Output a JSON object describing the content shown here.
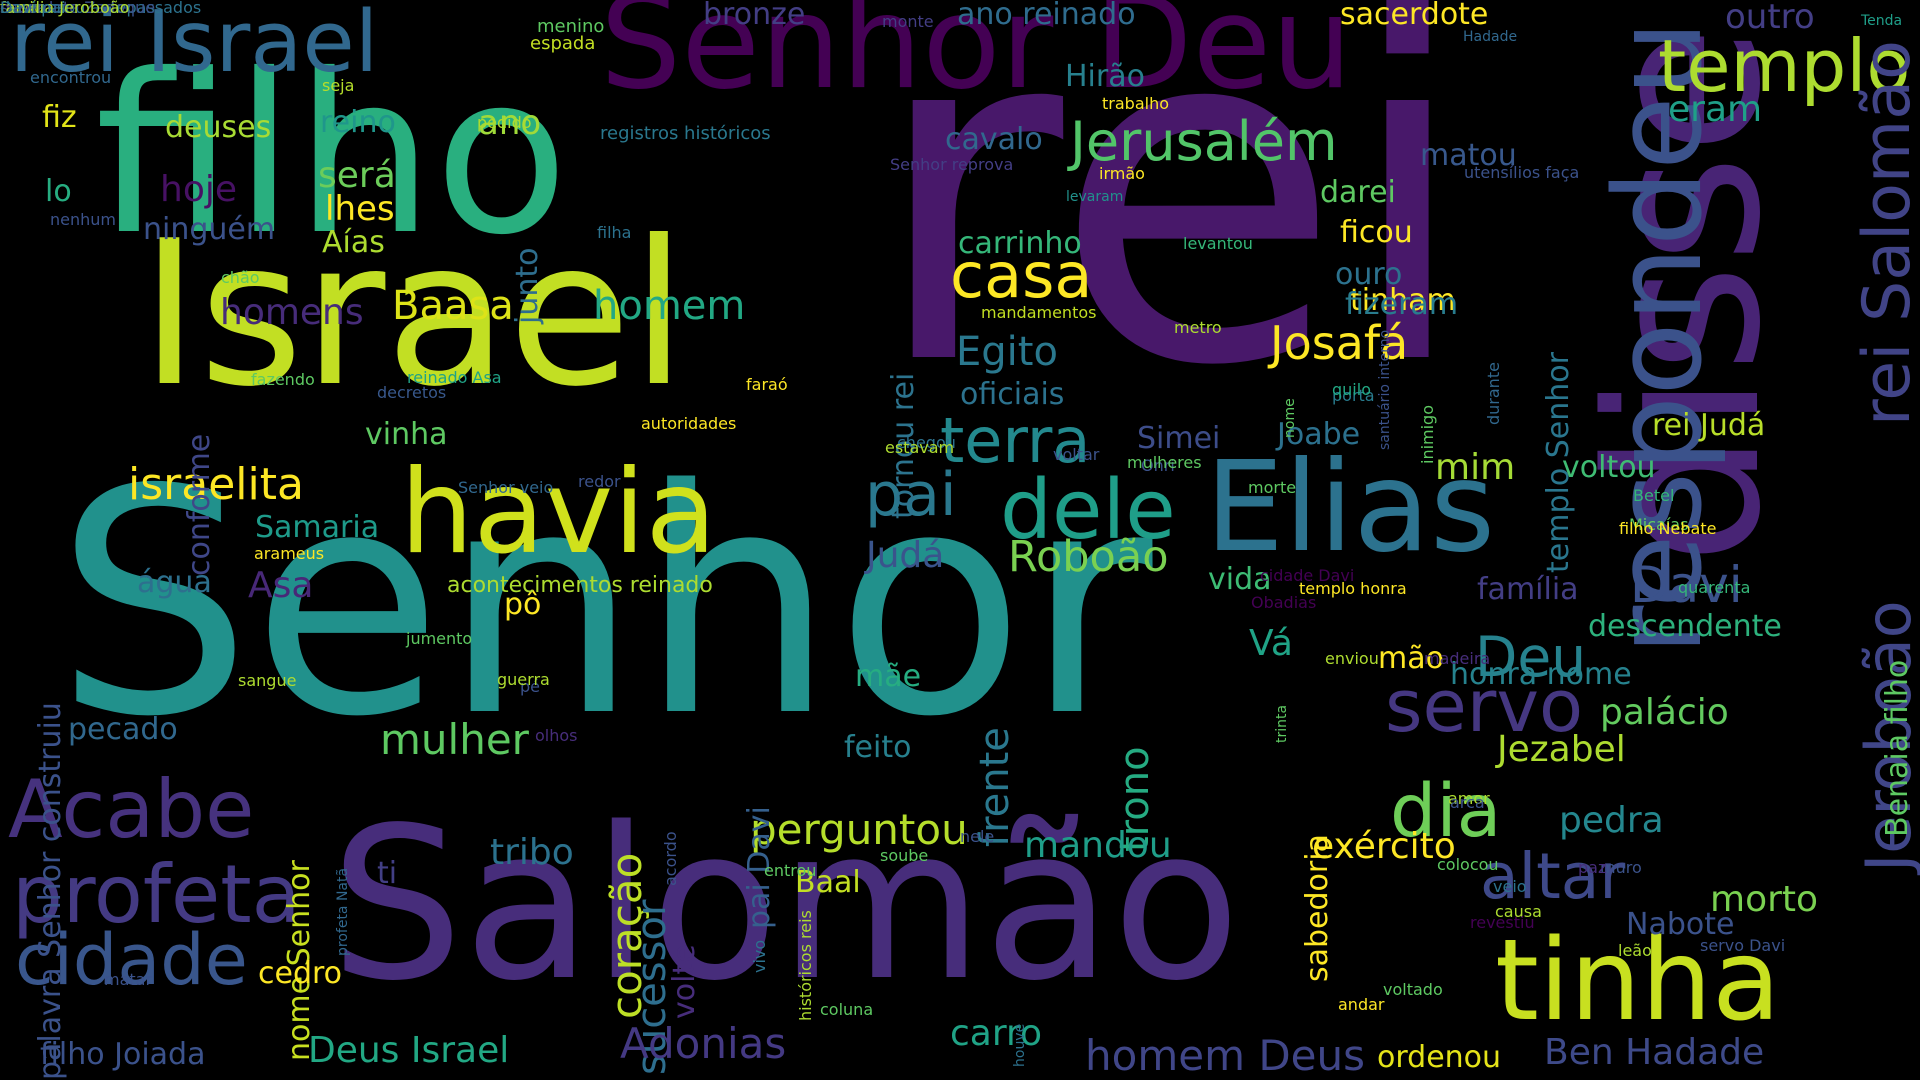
{
  "background_color": "#000000",
  "palette": [
    "#440154",
    "#472d7b",
    "#3b528b",
    "#2c728e",
    "#21918c",
    "#28ae80",
    "#5ec962",
    "#addc30",
    "#fde725"
  ],
  "words": [
    {
      "text": "rei",
      "color": "#48186a"
    },
    {
      "text": "Senhor",
      "color": "#21918c"
    },
    {
      "text": "filho",
      "color": "#29af7f"
    },
    {
      "text": "Israel",
      "color": "#c2df23"
    },
    {
      "text": "Salomão",
      "color": "#472d7b"
    },
    {
      "text": "disse",
      "color": "#482475"
    },
    {
      "text": "Senhor Deu",
      "color": "#440154"
    },
    {
      "text": "havia",
      "color": "#d0e11c"
    },
    {
      "text": "Elias",
      "color": "#2c728e"
    },
    {
      "text": "tinha",
      "color": "#c8e020"
    },
    {
      "text": "respondeu",
      "color": "#3b528b"
    },
    {
      "text": "rei Israel",
      "color": "#31688e"
    },
    {
      "text": "templo",
      "color": "#addc30"
    },
    {
      "text": "profeta",
      "color": "#443a83"
    },
    {
      "text": "Acabe",
      "color": "#46327e"
    },
    {
      "text": "cidade",
      "color": "#39568c"
    },
    {
      "text": "dele",
      "color": "#1f9e89"
    },
    {
      "text": "terra",
      "color": "#23898e"
    },
    {
      "text": "Jerusalém",
      "color": "#52c569"
    },
    {
      "text": "dia",
      "color": "#6ece58"
    },
    {
      "text": "servo",
      "color": "#453781"
    },
    {
      "text": "Deu",
      "color": "#26828e"
    },
    {
      "text": "altar",
      "color": "#3e4989"
    },
    {
      "text": "pai",
      "color": "#2a788e"
    },
    {
      "text": "casa",
      "color": "#fde725"
    },
    {
      "text": "rei Salomão",
      "color": "#414487"
    },
    {
      "text": "Jeroboão",
      "color": "#404688"
    },
    {
      "text": "Davi",
      "color": "#3b528b"
    },
    {
      "text": "Roboão",
      "color": "#7ad151"
    },
    {
      "text": "Baasa",
      "color": "#dde318"
    },
    {
      "text": "homem",
      "color": "#22a884"
    },
    {
      "text": "israelita",
      "color": "#fde725"
    },
    {
      "text": "Josafá",
      "color": "#fde725"
    },
    {
      "text": "Egito",
      "color": "#2a788e"
    },
    {
      "text": "perguntou",
      "color": "#b5de2b"
    },
    {
      "text": "mulher",
      "color": "#5ec962"
    },
    {
      "text": "coração",
      "color": "#bddf26"
    },
    {
      "text": "trono",
      "color": "#25ab82"
    },
    {
      "text": "sucessor",
      "color": "#2e6e8e"
    },
    {
      "text": "frente",
      "color": "#2a788e"
    },
    {
      "text": "pai Davi",
      "color": "#35608d"
    },
    {
      "text": "nome Senhor",
      "color": "#c8e020"
    },
    {
      "text": "palavra Senhor construiu",
      "color": "#3b528b"
    },
    {
      "text": "homem Deus",
      "color": "#404688"
    },
    {
      "text": "Deus Israel",
      "color": "#22a884"
    },
    {
      "text": "Adonias",
      "color": "#443983"
    },
    {
      "text": "Ben Hadade",
      "color": "#3e4a89"
    },
    {
      "text": "ordenou",
      "color": "#e5e419"
    },
    {
      "text": "carro",
      "color": "#20a386"
    },
    {
      "text": "sacerdote",
      "color": "#fde725"
    },
    {
      "text": "bronze",
      "color": "#433e85"
    },
    {
      "text": "ano reinado",
      "color": "#2f6c8e"
    },
    {
      "text": "outro",
      "color": "#433e85"
    },
    {
      "text": "eram",
      "color": "#1fa088"
    },
    {
      "text": "Hirão",
      "color": "#27808e"
    },
    {
      "text": "ano",
      "color": "#a0da39"
    },
    {
      "text": "reino",
      "color": "#1f968b"
    },
    {
      "text": "deuses",
      "color": "#a8db34"
    },
    {
      "text": "fiz",
      "color": "#e2e418"
    },
    {
      "text": "hoje",
      "color": "#471164"
    },
    {
      "text": "será",
      "color": "#6ccd5a"
    },
    {
      "text": "lhes",
      "color": "#fde725"
    },
    {
      "text": "Aías",
      "color": "#addc30"
    },
    {
      "text": "ninguém",
      "color": "#3b528b"
    },
    {
      "text": "lo",
      "color": "#27ad81"
    },
    {
      "text": "junto",
      "color": "#2e6e8e"
    },
    {
      "text": "cavalo",
      "color": "#31688e"
    },
    {
      "text": "carrinho",
      "color": "#35b779"
    },
    {
      "text": "matou",
      "color": "#38588c"
    },
    {
      "text": "darei",
      "color": "#5ec962"
    },
    {
      "text": "ficou",
      "color": "#fde725"
    },
    {
      "text": "ouro",
      "color": "#2c728e"
    },
    {
      "text": "tinham",
      "color": "#fde725"
    },
    {
      "text": "fizeram",
      "color": "#287c8e"
    },
    {
      "text": "templo Senhor",
      "color": "#2a768e"
    },
    {
      "text": "tornou rei",
      "color": "#2c738e"
    },
    {
      "text": "homens",
      "color": "#472c7a"
    },
    {
      "text": "conforme",
      "color": "#3f4788"
    },
    {
      "text": "oficiais",
      "color": "#2c728e"
    },
    {
      "text": "Simei",
      "color": "#3d4d8a"
    },
    {
      "text": "Joabe",
      "color": "#2c718e"
    },
    {
      "text": "mim",
      "color": "#a5db36"
    },
    {
      "text": "rei Judá",
      "color": "#b8de29"
    },
    {
      "text": "voltou",
      "color": "#3fbc73"
    },
    {
      "text": "vinha",
      "color": "#5ec962"
    },
    {
      "text": "Samaria",
      "color": "#1e9b8a"
    },
    {
      "text": "Asa",
      "color": "#482878"
    },
    {
      "text": "água",
      "color": "#2d708e"
    },
    {
      "text": "Judá",
      "color": "#3a548c"
    },
    {
      "text": "vida",
      "color": "#3dbc74"
    },
    {
      "text": "família",
      "color": "#433e85"
    },
    {
      "text": "descendente",
      "color": "#2db27d"
    },
    {
      "text": "Vá",
      "color": "#20a386"
    },
    {
      "text": "mão",
      "color": "#fde725"
    },
    {
      "text": "honra nome",
      "color": "#26828e"
    },
    {
      "text": "palácio",
      "color": "#63cb5f"
    },
    {
      "text": "mãe",
      "color": "#26ad81"
    },
    {
      "text": "feito",
      "color": "#27808e"
    },
    {
      "text": "pecado",
      "color": "#31688e"
    },
    {
      "text": "sabedoria",
      "color": "#fde725"
    },
    {
      "text": "Jezabel",
      "color": "#addc30"
    },
    {
      "text": "pedra",
      "color": "#24878e"
    },
    {
      "text": "exército",
      "color": "#fde725"
    },
    {
      "text": "mandou",
      "color": "#1f9e89"
    },
    {
      "text": "tribo",
      "color": "#2c728e"
    },
    {
      "text": "Baal",
      "color": "#c2df23"
    },
    {
      "text": "ti",
      "color": "#423f85"
    },
    {
      "text": "morto",
      "color": "#7ad151"
    },
    {
      "text": "Nabote",
      "color": "#3b528b"
    },
    {
      "text": "Benaia filho",
      "color": "#5ec962"
    },
    {
      "text": "cedro",
      "color": "#fde725"
    },
    {
      "text": "filho Joiada",
      "color": "#3b528b"
    },
    {
      "text": "pô",
      "color": "#fde725"
    },
    {
      "text": "acontecimentos reinado",
      "color": "#addc30"
    },
    {
      "text": "registros históricos",
      "color": "#2a788e"
    },
    {
      "text": "menino",
      "color": "#5ec962"
    },
    {
      "text": "espada",
      "color": "#c2df23"
    },
    {
      "text": "monte",
      "color": "#433e85"
    },
    {
      "text": "Tenda",
      "color": "#1f9e89"
    },
    {
      "text": "Hadade",
      "color": "#31688e"
    },
    {
      "text": "encontrou",
      "color": "#31688e"
    },
    {
      "text": "seja",
      "color": "#b5de2b"
    },
    {
      "text": "pedido",
      "color": "#addc30"
    },
    {
      "text": "trabalho",
      "color": "#fde725"
    },
    {
      "text": "Senhor reprova",
      "color": "#433e85"
    },
    {
      "text": "utensílios faça",
      "color": "#3b528b"
    },
    {
      "text": "levaram",
      "color": "#21918c"
    },
    {
      "text": "irmão",
      "color": "#fde725"
    },
    {
      "text": "nenhum",
      "color": "#3b528b"
    },
    {
      "text": "filha",
      "color": "#2c728e"
    },
    {
      "text": "levantou",
      "color": "#35b779"
    },
    {
      "text": "chão",
      "color": "#5ec962"
    },
    {
      "text": "mandamentos",
      "color": "#c2df23"
    },
    {
      "text": "metro",
      "color": "#addc30"
    },
    {
      "text": "porta",
      "color": "#287c8e"
    },
    {
      "text": "quilo",
      "color": "#22a884"
    },
    {
      "text": "fazendo",
      "color": "#5ec962"
    },
    {
      "text": "reinado Asa",
      "color": "#20a386"
    },
    {
      "text": "decretos",
      "color": "#38588c"
    },
    {
      "text": "faraó",
      "color": "#fde725"
    },
    {
      "text": "autoridades",
      "color": "#fde725"
    },
    {
      "text": "chegou",
      "color": "#2c728e"
    },
    {
      "text": "voltar",
      "color": "#3b528b"
    },
    {
      "text": "Onri",
      "color": "#3b528b"
    },
    {
      "text": "estavam",
      "color": "#addc30"
    },
    {
      "text": "mulheres",
      "color": "#5ec962"
    },
    {
      "text": "Senhor veio",
      "color": "#31688e"
    },
    {
      "text": "redor",
      "color": "#3b528b"
    },
    {
      "text": "morte",
      "color": "#5ec962"
    },
    {
      "text": "Betel",
      "color": "#35b779"
    },
    {
      "text": "Micaías",
      "color": "#5ec962"
    },
    {
      "text": "filho Nebate",
      "color": "#fde725"
    },
    {
      "text": "arameus",
      "color": "#fde725"
    },
    {
      "text": "cidade Davi",
      "color": "#440154"
    },
    {
      "text": "Obadias",
      "color": "#440154"
    },
    {
      "text": "quarenta",
      "color": "#35b779"
    },
    {
      "text": "templo honra",
      "color": "#fde725"
    },
    {
      "text": "sangue",
      "color": "#addc30"
    },
    {
      "text": "pé",
      "color": "#3b528b"
    },
    {
      "text": "olhos",
      "color": "#472d7b"
    },
    {
      "text": "jumento",
      "color": "#5ec962"
    },
    {
      "text": "enviou",
      "color": "#addc30"
    },
    {
      "text": "madeira",
      "color": "#472d7b"
    },
    {
      "text": "amor",
      "color": "#addc30"
    },
    {
      "text": "arca",
      "color": "#3b528b"
    },
    {
      "text": "guerra",
      "color": "#addc30"
    },
    {
      "text": "colocou",
      "color": "#5ec962"
    },
    {
      "text": "entrou",
      "color": "#5ec962"
    },
    {
      "text": "causa",
      "color": "#addc30"
    },
    {
      "text": "revestiu",
      "color": "#440154"
    },
    {
      "text": "soube",
      "color": "#5ec962"
    },
    {
      "text": "nele",
      "color": "#3b528b"
    },
    {
      "text": "veio",
      "color": "#2c728e"
    },
    {
      "text": "muro",
      "color": "#3b528b"
    },
    {
      "text": "leão",
      "color": "#addc30"
    },
    {
      "text": "servo Davi",
      "color": "#3b528b"
    },
    {
      "text": "voltado",
      "color": "#5ec962"
    },
    {
      "text": "matar",
      "color": "#3b528b"
    },
    {
      "text": "andar",
      "color": "#fde725"
    },
    {
      "text": "paz",
      "color": "#472d7b"
    },
    {
      "text": "coluna",
      "color": "#5ec962"
    },
    {
      "text": "profeta Natã",
      "color": "#31688e"
    },
    {
      "text": "vivo",
      "color": "#2c728e"
    },
    {
      "text": "históricos reis",
      "color": "#addc30"
    },
    {
      "text": "houve",
      "color": "#2c728e"
    },
    {
      "text": "trinta",
      "color": "#5ec962"
    },
    {
      "text": "santuário interno",
      "color": "#3b528b"
    },
    {
      "text": "durante",
      "color": "#31688e"
    },
    {
      "text": "inimigo",
      "color": "#5ec962"
    },
    {
      "text": "nome",
      "color": "#5ec962"
    },
    {
      "text": "acordo",
      "color": "#3b528b"
    },
    {
      "text": "volte",
      "color": "#472d7b"
    },
    {
      "text": "ouviu",
      "color": "#addc30"
    },
    {
      "text": "descansou antepassados",
      "color": "#2c728e"
    },
    {
      "text": "sacerdote Zadoque",
      "color": "#3b528b"
    },
    {
      "text": "mar",
      "color": "#472d7b"
    },
    {
      "text": "família Jeroboão",
      "color": "#addc30"
    },
    {
      "text": "Davi pai",
      "color": "#2c728e"
    }
  ]
}
